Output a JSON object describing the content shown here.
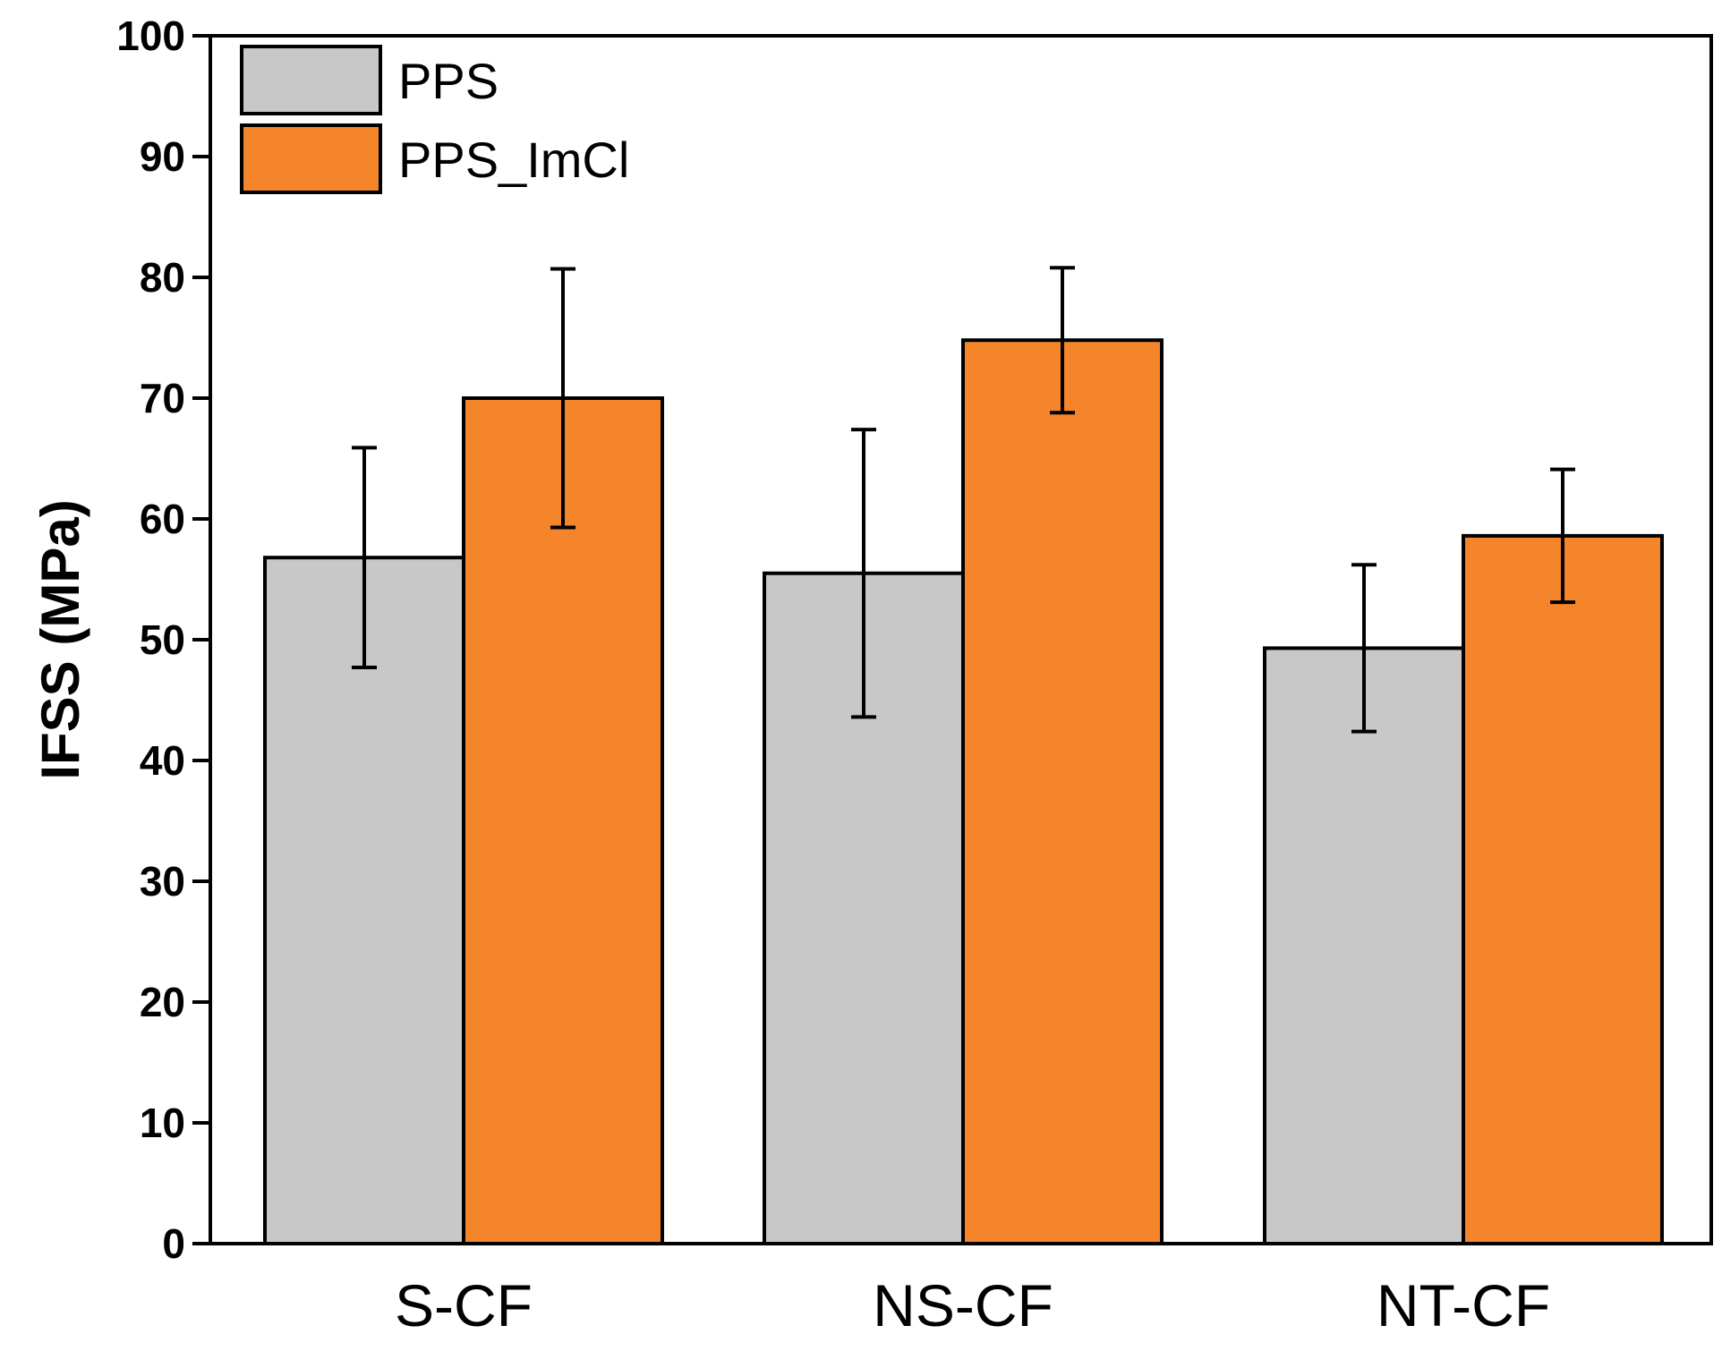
{
  "chart_data": {
    "type": "bar",
    "title": "",
    "xlabel": "",
    "ylabel": "IFSS (MPa)",
    "ylim": [
      0,
      100
    ],
    "yticks": [
      0,
      10,
      20,
      30,
      40,
      50,
      60,
      70,
      80,
      90,
      100
    ],
    "categories": [
      "S-CF",
      "NS-CF",
      "NT-CF"
    ],
    "series": [
      {
        "name": "PPS",
        "color": "#c8c8c8",
        "values": [
          56.8,
          55.5,
          49.3
        ],
        "errors": [
          9.1,
          11.9,
          6.9
        ]
      },
      {
        "name": "PPS_ImCl",
        "color": "#f5852b",
        "values": [
          70.0,
          74.8,
          58.6
        ],
        "errors": [
          10.7,
          6.0,
          5.5
        ]
      }
    ],
    "legend": "top-left",
    "grid": false
  }
}
